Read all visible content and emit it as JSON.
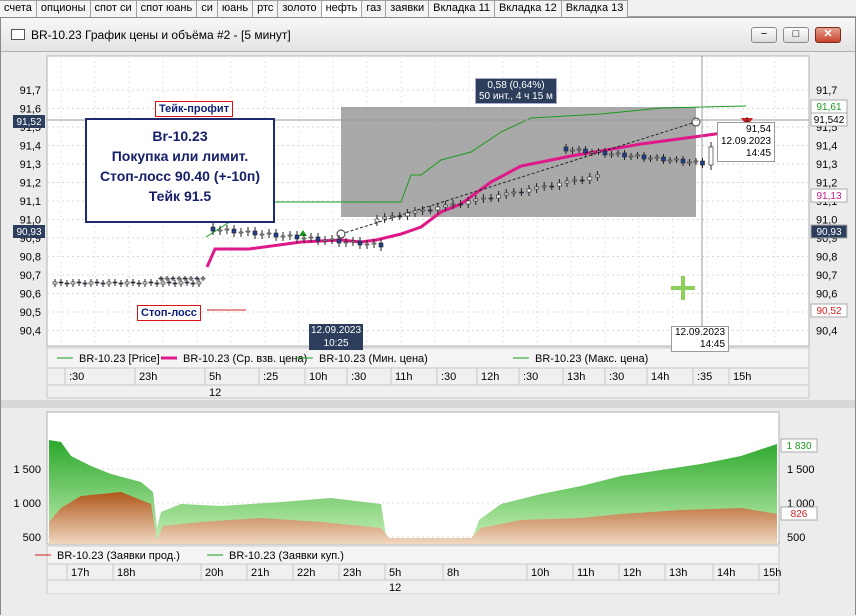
{
  "tabs": [
    "счета",
    "опционы",
    "спот си",
    "спот юань",
    "си",
    "юань",
    "ртс",
    "золото",
    "нефть",
    "газ",
    "заявки",
    "Вкладка 11",
    "Вкладка 12",
    "Вкладка 13"
  ],
  "active_tab": "нефть",
  "window": {
    "title": "BR-10.23 График цены и объёма #2 - [5 минут]",
    "buttons": [
      "−",
      "□",
      "✕"
    ]
  },
  "note": {
    "lines": [
      "Br-10.23",
      "Покупка или лимит.",
      "Стоп-лосс 90.40 (+-10п)",
      "Тейк 91.5"
    ]
  },
  "labels": {
    "take_profit": "Тейк-профит",
    "stop_loss": "Стоп-лосс"
  },
  "price_chart": {
    "y_ticks": [
      "91,7",
      "91,6",
      "91,5",
      "91,4",
      "91,3",
      "91,2",
      "91,1",
      "91,0",
      "90,9",
      "90,8",
      "90,7",
      "90,6",
      "90,5",
      "90,4"
    ],
    "left_tags": [
      "91,52",
      "90,93"
    ],
    "right_tags": [
      {
        "text": "91,61",
        "color": "#1a9a1a"
      },
      {
        "text": "91,542",
        "color": "#000000"
      },
      {
        "text": "91,13",
        "color": "#d0198a"
      },
      {
        "text": "90,93",
        "color": "#ffffff"
      },
      {
        "text": "90,52",
        "color": "#d22020"
      }
    ],
    "selection_info": [
      "0,58 (0,64%)",
      "50 инт., 4 ч 15 м"
    ],
    "cursor_info": [
      "91,54",
      "12.09.2023",
      "14:45"
    ],
    "cursor_date_left": [
      "12.09.2023",
      "10:25"
    ],
    "cursor_date_right": [
      "12.09.2023",
      "14:45"
    ],
    "legend": [
      {
        "name": "BR-10.23 [Price]",
        "color": "#1a9a1a"
      },
      {
        "name": "BR-10.23 (Ср. взв. цена)",
        "color": "#e0198a"
      },
      {
        "name": "BR-10.23 (Мин. цена)",
        "color": "#1a9a1a"
      },
      {
        "name": "BR-10.23 (Макс. цена)",
        "color": "#1a9a1a"
      }
    ],
    "x_ticks": [
      ":30",
      "23h",
      "5h",
      ":25",
      "10h",
      ":30",
      "11h",
      ":30",
      "12h",
      ":30",
      "13h",
      ":30",
      "14h",
      ":35",
      "15h"
    ],
    "day_label": "12"
  },
  "volume_chart": {
    "y_ticks": [
      "1 500",
      "1 000",
      "500"
    ],
    "right_tags": [
      {
        "text": "1 830",
        "color": "#1a9a1a"
      },
      {
        "text": "826",
        "color": "#d22020"
      }
    ],
    "legend": [
      {
        "name": "BR-10.23 (Заявки прод.)",
        "color": "#d22020"
      },
      {
        "name": "BR-10.23 (Заявки куп.)",
        "color": "#1a9a1a"
      }
    ],
    "x_ticks": [
      "17h",
      "18h",
      "20h",
      "21h",
      "22h",
      "23h",
      "5h",
      "8h",
      "10h",
      "11h",
      "12h",
      "13h",
      "14h",
      "15h"
    ],
    "day_label": "12"
  },
  "colors": {
    "green": "#1a9a1a",
    "vwap": "#e0198a",
    "red": "#d22020",
    "selection": "#9a9a9a"
  }
}
